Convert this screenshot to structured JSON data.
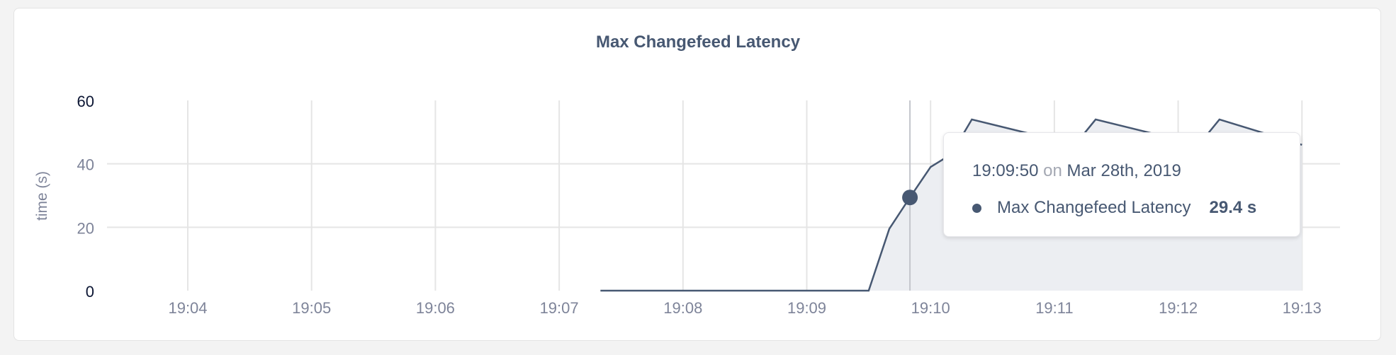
{
  "chart_data": {
    "type": "area",
    "title": "Max Changefeed Latency",
    "ylabel": "time (s)",
    "xlabel": "",
    "ylim": [
      0,
      60
    ],
    "yticks": [
      "0",
      "20",
      "40",
      "60"
    ],
    "xticks": [
      "19:04",
      "19:05",
      "19:06",
      "19:07",
      "19:08",
      "19:09",
      "19:10",
      "19:11",
      "19:12",
      "19:13"
    ],
    "grid": true,
    "series": [
      {
        "name": "Max Changefeed Latency",
        "color": "#475872",
        "fill": "#eceef2",
        "x": [
          "19:07:20",
          "19:09:30",
          "19:09:40",
          "19:09:50",
          "19:10:00",
          "19:10:10",
          "19:10:20",
          "19:11:10",
          "19:11:20",
          "19:12:10",
          "19:12:20",
          "19:13:00"
        ],
        "y": [
          0,
          0,
          19.5,
          29.4,
          39,
          43,
          54,
          46,
          54,
          46,
          54,
          46
        ]
      }
    ]
  },
  "tooltip": {
    "time": "19:09:50",
    "on": "on",
    "date": "Mar 28th, 2019",
    "series_name": "Max Changefeed Latency",
    "value": "29.4 s",
    "hover_x": "19:09:50"
  }
}
